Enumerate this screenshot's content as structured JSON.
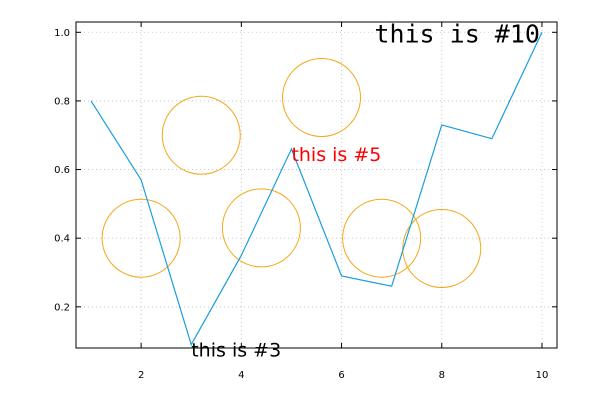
{
  "chart_data": {
    "type": "line",
    "title": "",
    "xlabel": "",
    "ylabel": "",
    "xlim": [
      0.7,
      10.3
    ],
    "ylim": [
      0.08,
      1.03
    ],
    "grid": true,
    "x_ticks": [
      2,
      4,
      6,
      8,
      10
    ],
    "y_ticks": [
      0.2,
      0.4,
      0.6,
      0.8,
      1.0
    ],
    "x_tick_labels": [
      "2",
      "4",
      "6",
      "8",
      "10"
    ],
    "y_tick_labels": [
      "0.2",
      "0.4",
      "0.6",
      "0.8",
      "1.0"
    ],
    "series": [
      {
        "color": "#1a9ee0",
        "x": [
          1,
          2,
          3,
          4,
          5,
          6,
          7,
          8,
          9,
          10
        ],
        "y": [
          0.8,
          0.57,
          0.09,
          0.35,
          0.66,
          0.29,
          0.26,
          0.73,
          0.69,
          1.0
        ]
      }
    ],
    "circles": {
      "color": "#f4a818",
      "points": [
        {
          "x": 2.0,
          "y": 0.4
        },
        {
          "x": 3.2,
          "y": 0.7
        },
        {
          "x": 4.4,
          "y": 0.43
        },
        {
          "x": 5.6,
          "y": 0.81
        },
        {
          "x": 6.8,
          "y": 0.4
        },
        {
          "x": 8.0,
          "y": 0.37
        }
      ]
    },
    "annotations": [
      {
        "id": "label-3",
        "text": "this is #3",
        "x": 3,
        "y": 0.09,
        "color": "#000000",
        "font": "sans"
      },
      {
        "id": "label-5",
        "text": "this is #5",
        "x": 5,
        "y": 0.66,
        "color": "#ff0000",
        "font": "sans"
      },
      {
        "id": "label-10",
        "text": "this is #10",
        "x": 10,
        "y": 1.0,
        "color": "#000000",
        "font": "mono"
      }
    ]
  }
}
